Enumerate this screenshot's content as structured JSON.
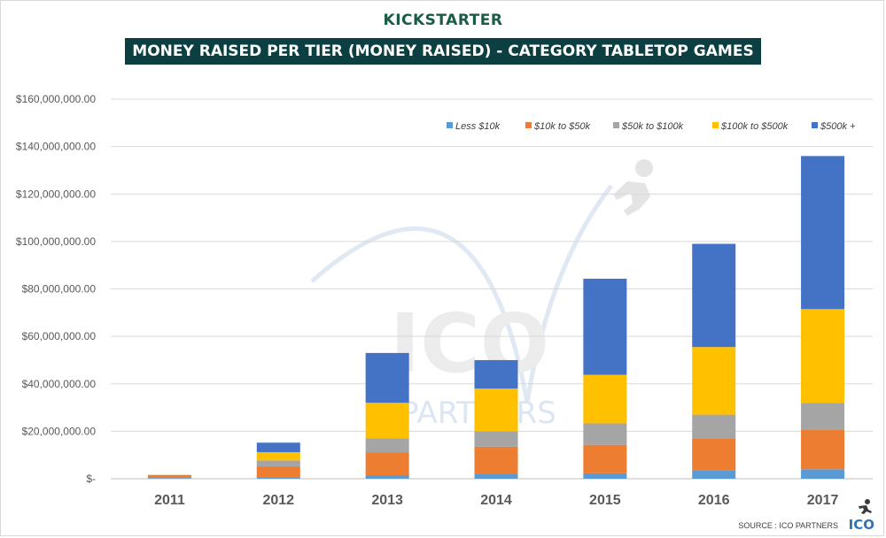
{
  "brand": "KICKSTARTER",
  "footer": {
    "source": "SOURCE : ICO PARTNERS",
    "logo": "ICO"
  },
  "watermark": {
    "text_main": "ICO",
    "text_sub": "PARTNERS"
  },
  "colors": {
    "less_10k": "#5b9bd5",
    "10k_50k": "#ed7d31",
    "50k_100k": "#a5a5a5",
    "100k_500k": "#ffc000",
    "500k_plus": "#4472c4",
    "title_bg": "#0c3f41"
  },
  "chart_data": {
    "type": "bar",
    "stacked": true,
    "title": "MONEY RAISED PER TIER (MONEY RAISED) - CATEGORY TABLETOP  GAMES",
    "xlabel": "",
    "ylabel": "",
    "ylim": [
      0,
      160000000
    ],
    "yticks": [
      0,
      20000000,
      40000000,
      60000000,
      80000000,
      100000000,
      120000000,
      140000000,
      160000000
    ],
    "ytick_labels": [
      "$-",
      "$20,000,000.00",
      "$40,000,000.00",
      "$60,000,000.00",
      "$80,000,000.00",
      "$100,000,000.00",
      "$120,000,000.00",
      "$140,000,000.00",
      "$160,000,000.00"
    ],
    "categories": [
      "2011",
      "2012",
      "2013",
      "2014",
      "2015",
      "2016",
      "2017"
    ],
    "legend_position": "top-right",
    "grid": true,
    "series": [
      {
        "name": "Less $10k",
        "color_key": "less_10k",
        "values": [
          300000,
          700000,
          1500000,
          2200000,
          2300000,
          3500000,
          4000000
        ]
      },
      {
        "name": "$10k to $50k",
        "color_key": "10k_50k",
        "values": [
          1300000,
          4500000,
          9500000,
          11300000,
          12000000,
          13500000,
          16500000
        ]
      },
      {
        "name": "$50k to $100k",
        "color_key": "50k_100k",
        "values": [
          0,
          2500000,
          6000000,
          6500000,
          9000000,
          10000000,
          11500000
        ]
      },
      {
        "name": "$100k to $500k",
        "color_key": "100k_500k",
        "values": [
          0,
          3500000,
          15000000,
          18000000,
          20500000,
          28500000,
          39500000
        ]
      },
      {
        "name": "$500k +",
        "color_key": "500k_plus",
        "values": [
          0,
          4000000,
          21000000,
          12000000,
          40500000,
          43500000,
          64500000
        ]
      }
    ]
  }
}
